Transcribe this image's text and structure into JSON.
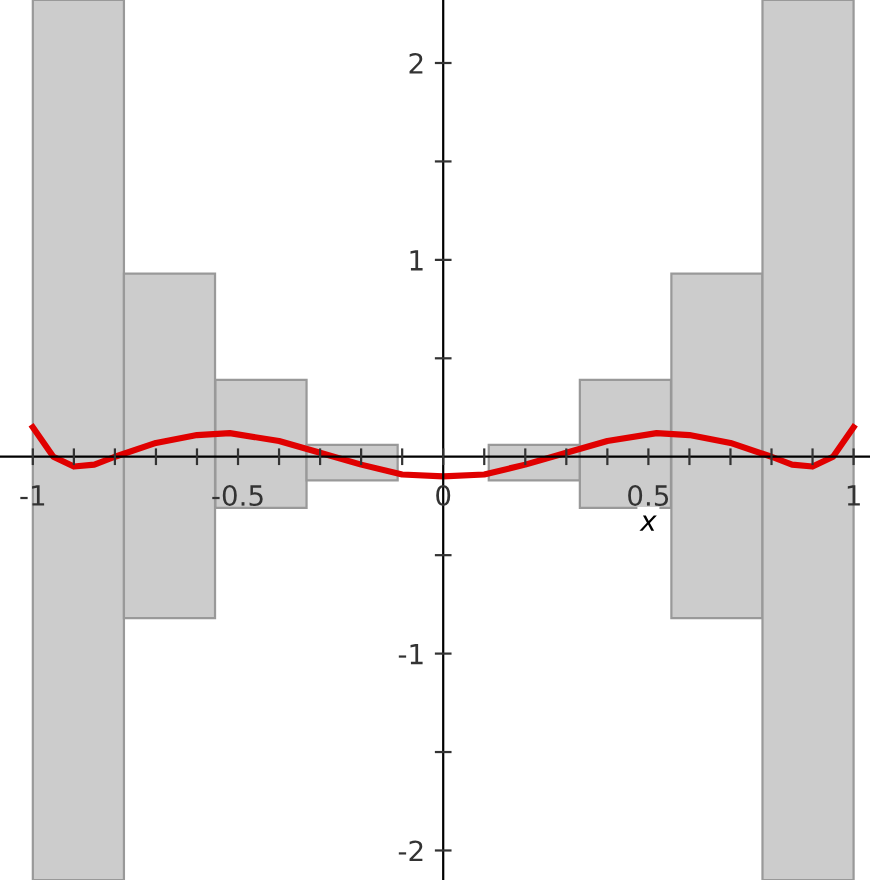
{
  "chart_data": {
    "type": "bar",
    "xlabel": "x",
    "xlim": [
      -1.08,
      1.04
    ],
    "ylim": [
      -2.15,
      2.32
    ],
    "xticks": [
      -1,
      {
        "value": -0.9,
        "label": null
      },
      {
        "value": -0.8,
        "label": null
      },
      {
        "value": -0.7,
        "label": null
      },
      {
        "value": -0.6,
        "label": null
      },
      -0.5,
      {
        "value": -0.4,
        "label": null
      },
      {
        "value": -0.3,
        "label": null
      },
      {
        "value": -0.2,
        "label": null
      },
      {
        "value": -0.1,
        "label": null
      },
      0,
      {
        "value": 0.1,
        "label": null
      },
      {
        "value": 0.2,
        "label": null
      },
      {
        "value": 0.3,
        "label": null
      },
      {
        "value": 0.4,
        "label": null
      },
      0.5,
      {
        "value": 0.6,
        "label": null
      },
      {
        "value": 0.7,
        "label": null
      },
      {
        "value": 0.8,
        "label": null
      },
      {
        "value": 0.9,
        "label": null
      },
      1
    ],
    "yticks": [
      -2,
      {
        "value": -1.5,
        "label": null
      },
      -1,
      {
        "value": -0.5,
        "label": null
      },
      {
        "value": 0.5,
        "label": null
      },
      1,
      {
        "value": 1.5,
        "label": null
      },
      2
    ],
    "grid": false,
    "legend": false,
    "series": [
      {
        "color": "#cccccc",
        "x": [
          -0.889,
          -0.667,
          -0.444,
          -0.222,
          0.222,
          0.444,
          0.667,
          0.889
        ],
        "base": [
          -2.15,
          -0.82,
          -0.26,
          -0.12,
          -0.12,
          -0.26,
          -0.82,
          -2.15
        ],
        "values": [
          4.47,
          1.75,
          0.65,
          0.18,
          0.18,
          0.65,
          1.75,
          4.47
        ]
      },
      {
        "type": "line",
        "color": "#e00000",
        "x": [
          -1,
          -0.95,
          -0.9,
          -0.85,
          -0.8,
          -0.7,
          -0.6,
          -0.52,
          -0.4,
          -0.3,
          -0.2,
          -0.1,
          0,
          0.1,
          0.2,
          0.3,
          0.4,
          0.52,
          0.6,
          0.7,
          0.8,
          0.85,
          0.9,
          0.95,
          1
        ],
        "values": [
          0.15,
          0.0,
          -0.05,
          -0.04,
          0.0,
          0.07,
          0.11,
          0.12,
          0.08,
          0.02,
          -0.04,
          -0.09,
          -0.1,
          -0.09,
          -0.04,
          0.02,
          0.08,
          0.12,
          0.11,
          0.07,
          0.0,
          -0.04,
          -0.05,
          0.0,
          0.15
        ]
      }
    ]
  }
}
